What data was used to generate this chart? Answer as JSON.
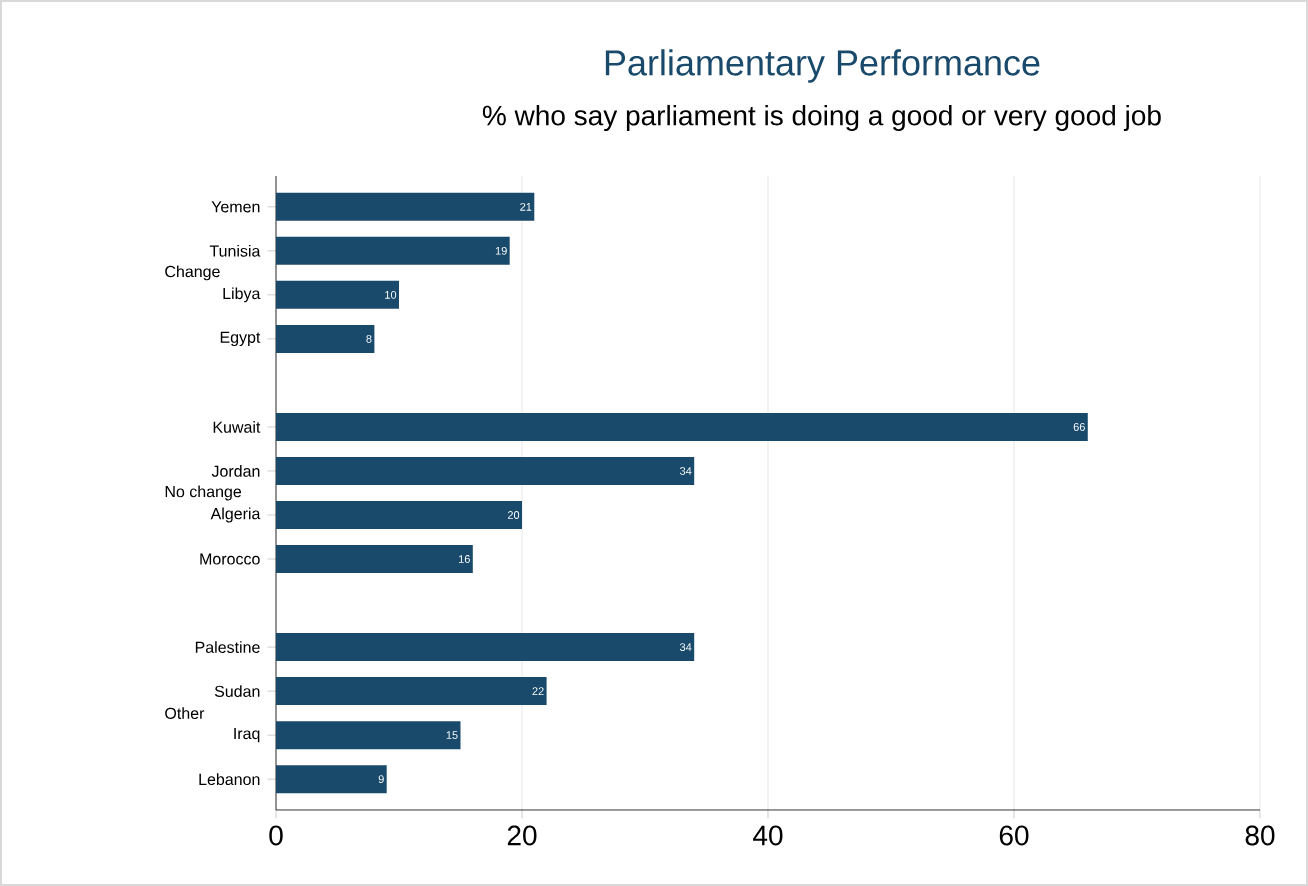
{
  "chart_data": {
    "type": "bar",
    "orientation": "horizontal",
    "title": "Parliamentary Performance",
    "subtitle": "% who say parliament is doing a good or very good job",
    "categories": [
      "Yemen",
      "Tunisia",
      "Libya",
      "Egypt",
      null,
      "Kuwait",
      "Jordan",
      "Algeria",
      "Morocco",
      null,
      "Palestine",
      "Sudan",
      "Iraq",
      "Lebanon"
    ],
    "values": [
      21,
      19,
      10,
      8,
      null,
      66,
      34,
      20,
      16,
      null,
      34,
      22,
      15,
      9
    ],
    "color": "#1a4a6b",
    "annotations": [
      "Change",
      "No change",
      "Other"
    ],
    "xlim": [
      0,
      80
    ],
    "xticks": [
      0,
      20,
      40,
      60,
      80
    ],
    "grid": "x",
    "data_labels": true
  }
}
